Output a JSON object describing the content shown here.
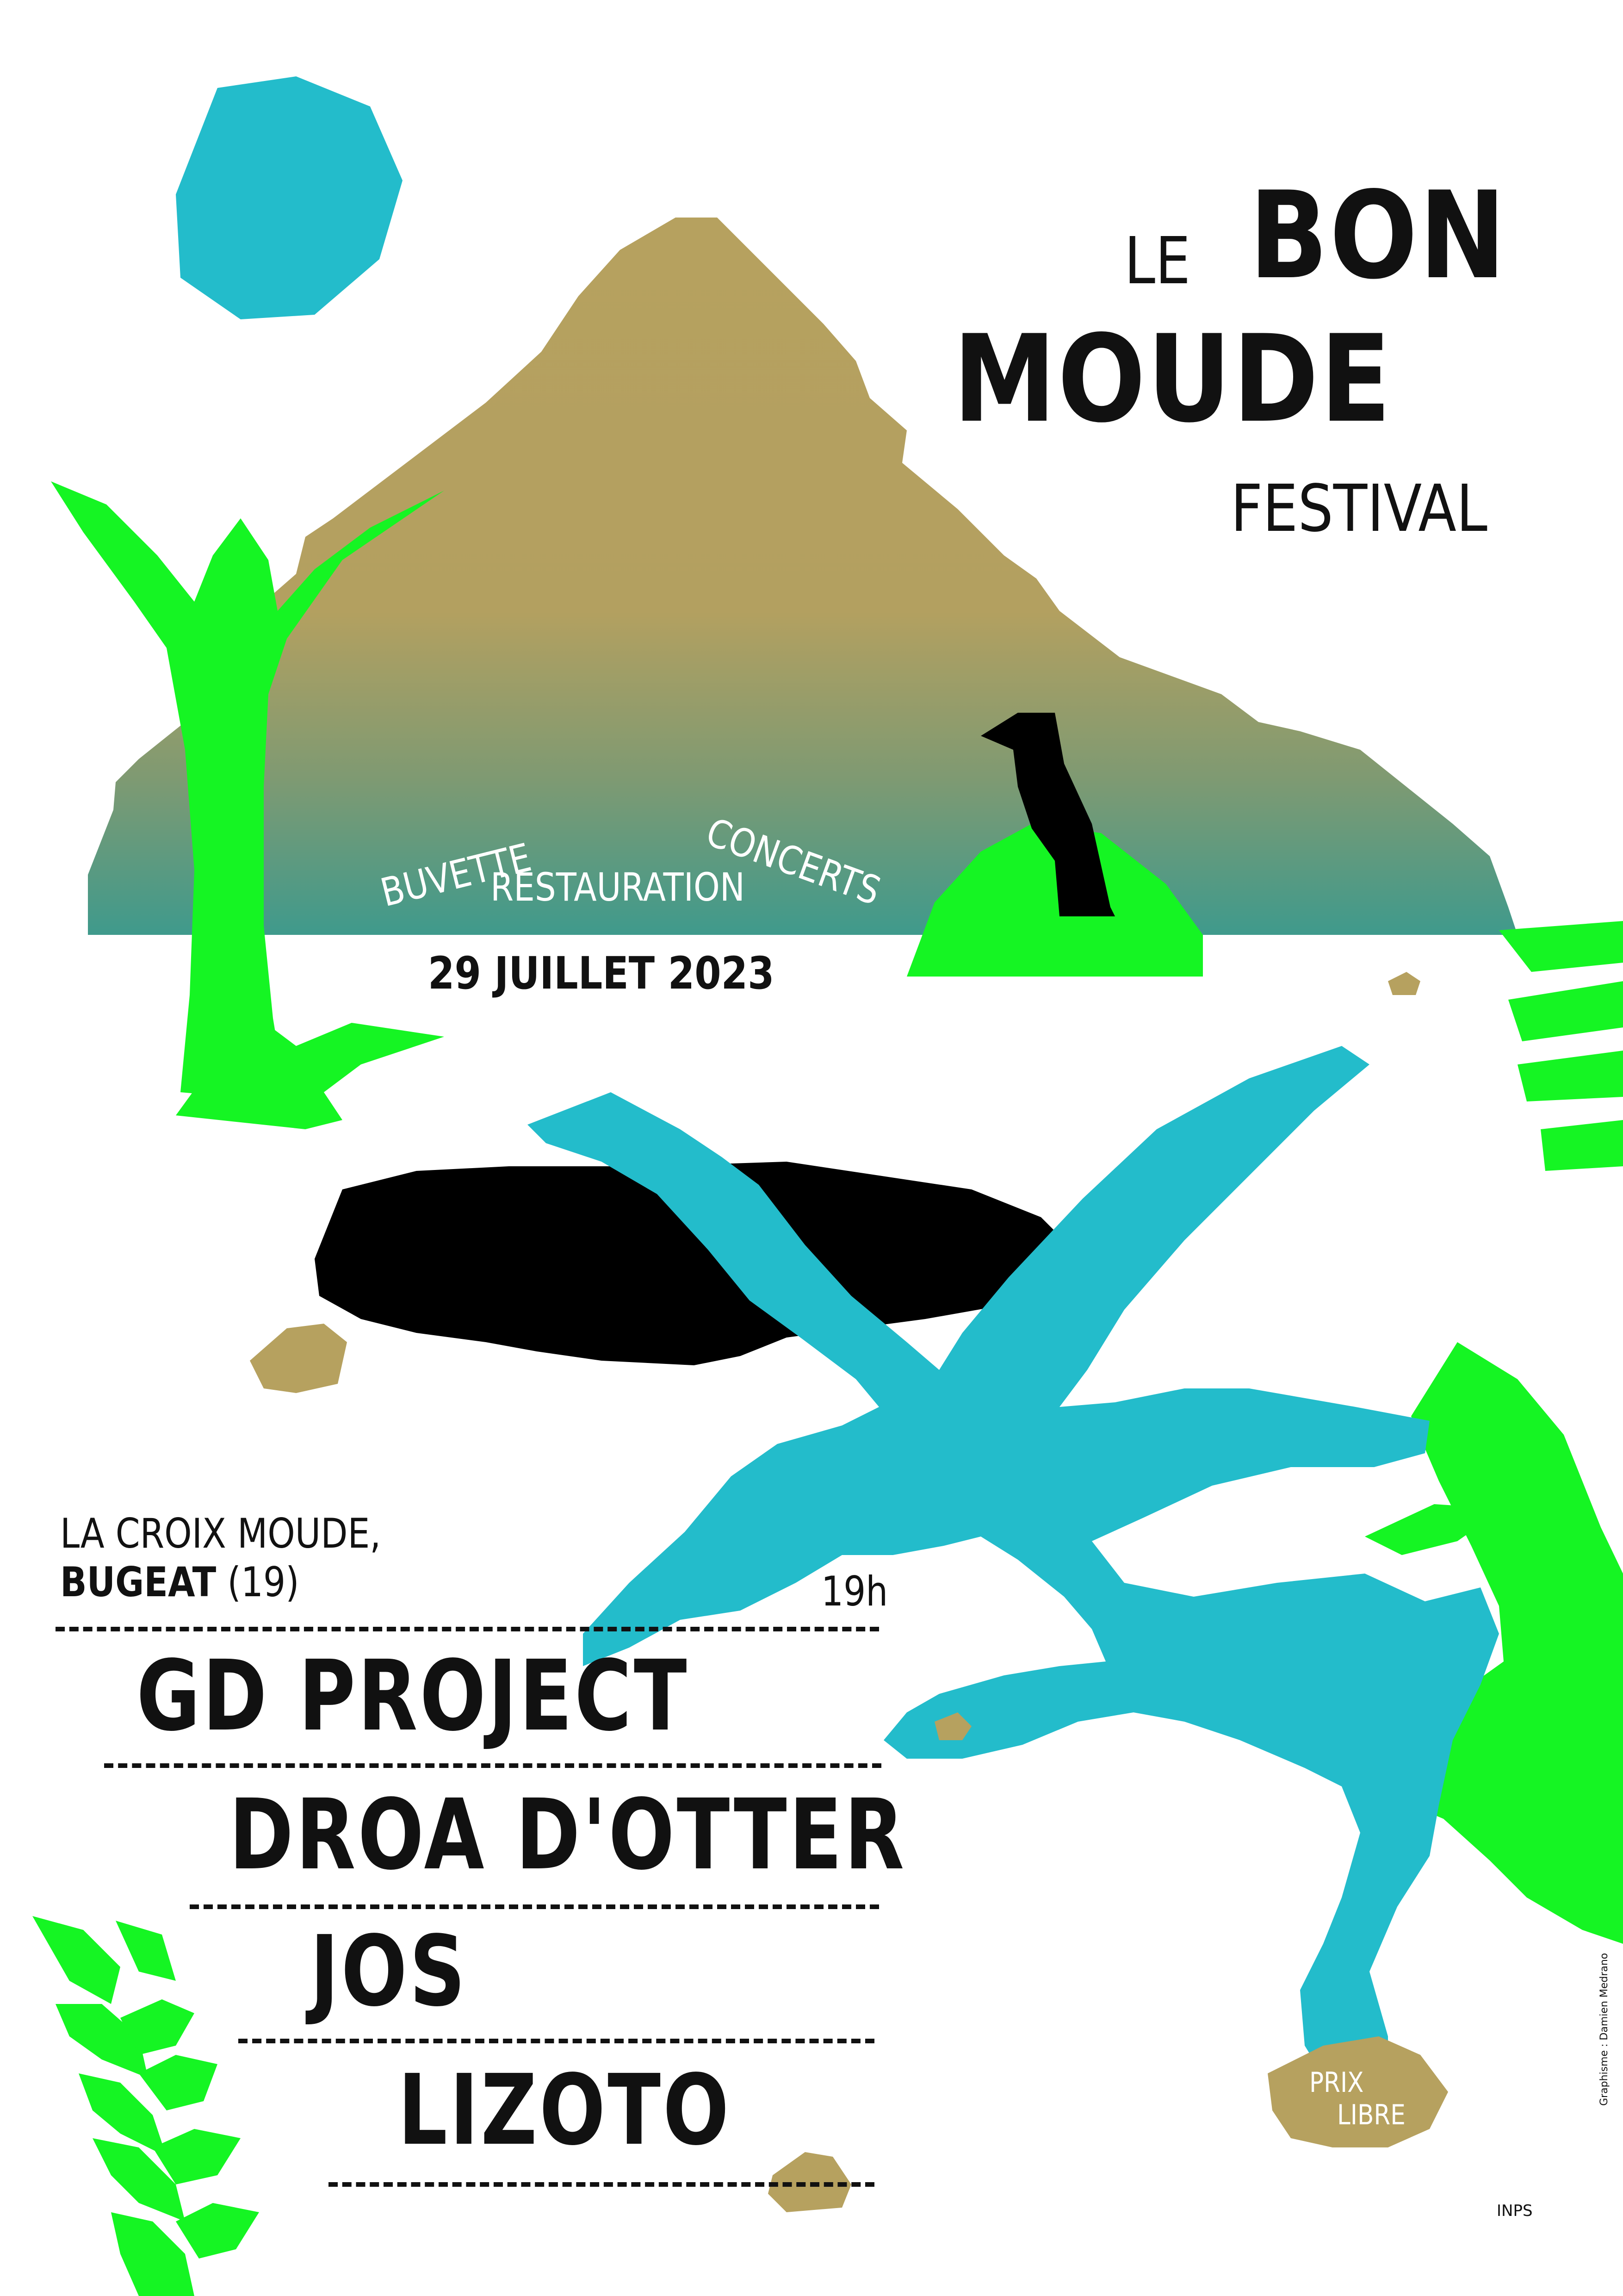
{
  "header": {
    "le": "LE",
    "bon": "BON",
    "moude": "MOUDE",
    "festival": "FESTIVAL"
  },
  "tags": {
    "buvette": "BUVETTE",
    "restauration": "RESTAURATION",
    "concerts": "CONCERTS"
  },
  "date": "29 JUILLET 2023",
  "venue": {
    "line1": "LA CROIX MOUDE,",
    "town": "BUGEAT",
    "dept": " (19)"
  },
  "time": "19h",
  "lineup": [
    "GD PROJECT",
    "DROA D'OTTER",
    "JOS",
    "LIZOTO"
  ],
  "price": {
    "line1": "PRIX",
    "line2": "LIBRE"
  },
  "credit": "Graphisme : Damien Medrano",
  "printer": "INPS",
  "colors": {
    "turquoise": "#23bccb",
    "green": "#15f523",
    "khaki": "#b6a15f",
    "mountain_bottom": "#3f9a8c",
    "black": "#000000"
  }
}
